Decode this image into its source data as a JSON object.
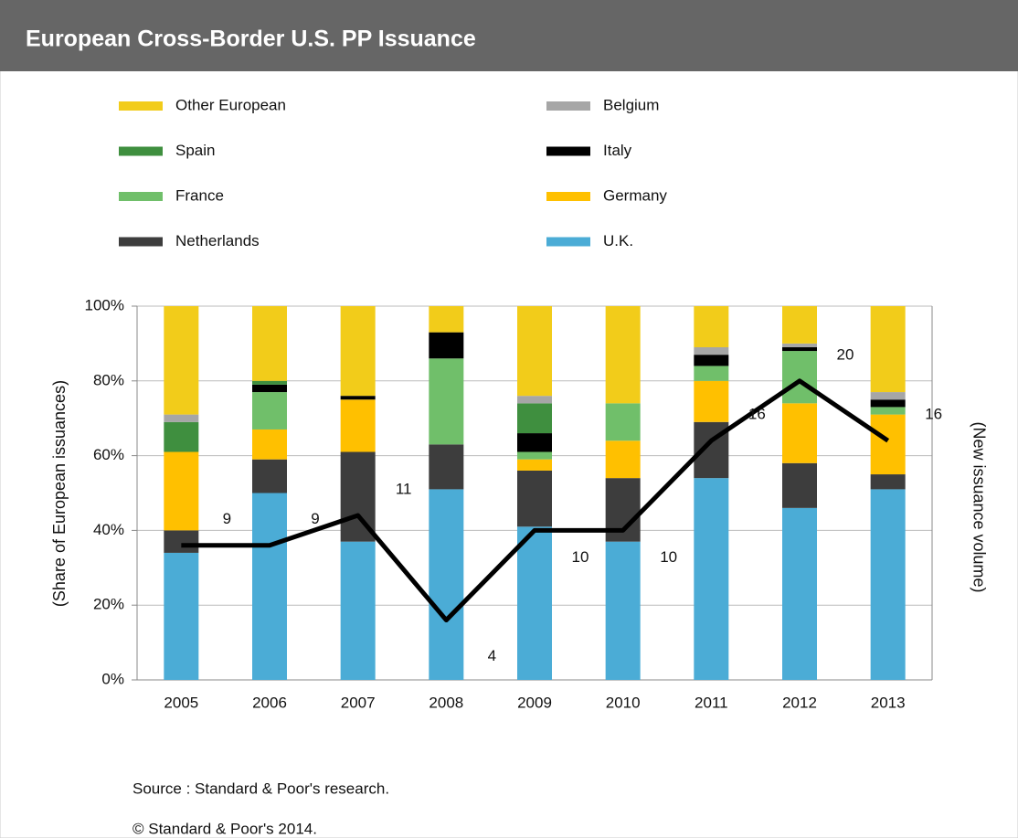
{
  "chart_data": {
    "type": "bar",
    "stacked": true,
    "title": "European Cross-Border  U.S. PP Issuance",
    "ylabel": "(Share of European issuances)",
    "y2label": "(New issuance volume)",
    "source": "Source : Standard & Poor's research.",
    "copyright": "© Standard & Poor's 2014.",
    "categories": [
      "2005",
      "2006",
      "2007",
      "2008",
      "2009",
      "2010",
      "2011",
      "2012",
      "2013"
    ],
    "series": [
      {
        "name": "U.K.",
        "color": "#4bacd6",
        "values": [
          34,
          50,
          37,
          51,
          41,
          37,
          54,
          46,
          51
        ]
      },
      {
        "name": "Netherlands",
        "color": "#3d3d3d",
        "values": [
          6,
          9,
          24,
          12,
          15,
          17,
          15,
          12,
          4
        ]
      },
      {
        "name": "Germany",
        "color": "#ffc000",
        "values": [
          21,
          8,
          14,
          0,
          3,
          10,
          11,
          16,
          16
        ]
      },
      {
        "name": "France",
        "color": "#70bf6a",
        "values": [
          0,
          10,
          0,
          23,
          2,
          10,
          4,
          14,
          2
        ]
      },
      {
        "name": "Italy",
        "color": "#000000",
        "values": [
          0,
          2,
          1,
          7,
          5,
          0,
          3,
          1,
          2
        ]
      },
      {
        "name": "Spain",
        "color": "#3f8f3f",
        "values": [
          8,
          1,
          0,
          0,
          8,
          0,
          0,
          0,
          0
        ]
      },
      {
        "name": "Belgium",
        "color": "#a6a6a6",
        "values": [
          2,
          0,
          0,
          0,
          2,
          0,
          2,
          1,
          2
        ]
      },
      {
        "name": "Other European",
        "color": "#f2cc1a",
        "values": [
          29,
          20,
          24,
          7,
          24,
          26,
          11,
          10,
          23
        ]
      }
    ],
    "line": {
      "axis": "y2",
      "color": "#000000",
      "values": [
        9,
        9,
        11,
        4,
        10,
        10,
        16,
        20,
        16
      ]
    },
    "ylim": [
      0,
      100
    ],
    "yticks": [
      {
        "value": 0,
        "label": "0%"
      },
      {
        "value": 20,
        "label": "20%"
      },
      {
        "value": 40,
        "label": "40%"
      },
      {
        "value": 60,
        "label": "60%"
      },
      {
        "value": 80,
        "label": "80%"
      },
      {
        "value": 100,
        "label": "100%"
      }
    ],
    "y2lim": [
      0,
      25
    ],
    "grid": true
  }
}
